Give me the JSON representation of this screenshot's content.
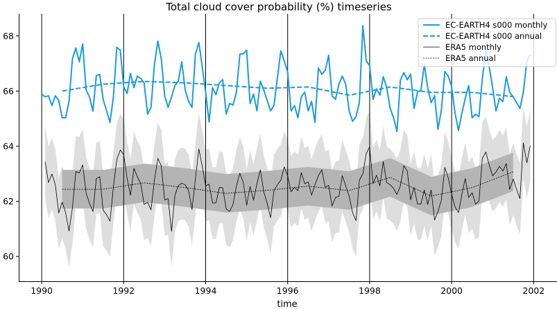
{
  "chart_data": {
    "type": "line",
    "title": "Total cloud cover probability (%) timeseries",
    "xlabel": "time",
    "ylabel": "",
    "xlim": [
      1989.44,
      2002.57
    ],
    "ylim": [
      59.1,
      68.8
    ],
    "xticks": [
      "1990",
      "1992",
      "1994",
      "1996",
      "1998",
      "2000",
      "2002"
    ],
    "yticks": [
      "60",
      "62",
      "64",
      "66",
      "68"
    ],
    "vertical_lines_at": [
      1990,
      1992,
      1994,
      1996,
      1998,
      2000,
      2002
    ],
    "grid": false,
    "legend_position": "top-right",
    "colors": {
      "ec_earth": "#1b9be0",
      "era5": "#000000",
      "era5_monthly_band": "#dedede",
      "era5_annual_band": "#b4b4b4"
    },
    "series": [
      {
        "name": "EC-EARTH4 s000 monthly",
        "style": "solid",
        "start": "1990-01",
        "step": "month",
        "values": [
          65.89,
          65.79,
          65.83,
          65.47,
          65.83,
          65.66,
          65.03,
          65.03,
          65.62,
          67.17,
          67.56,
          67.06,
          67.71,
          66.04,
          65.79,
          65.27,
          66.56,
          66.6,
          65.7,
          65.28,
          64.86,
          65.79,
          67.59,
          67.48,
          66.16,
          65.91,
          66.64,
          66.12,
          66.54,
          66.46,
          66.29,
          65.16,
          65.41,
          66.96,
          67.81,
          67.17,
          65.83,
          65.41,
          65.79,
          66.2,
          66.36,
          67.06,
          66.04,
          65.62,
          65.41,
          67.34,
          67.76,
          66.88,
          65.95,
          64.88,
          66.12,
          65.87,
          66.3,
          66.41,
          65.16,
          65.55,
          65.49,
          65.95,
          67.34,
          67.35,
          67.48,
          65.55,
          65.89,
          65.28,
          66.36,
          66.04,
          65.66,
          65.28,
          65.49,
          66.47,
          67.46,
          67.09,
          66.69,
          65.28,
          65.47,
          65.03,
          65.79,
          65.96,
          65.28,
          65.62,
          64.86,
          66.83,
          66.61,
          66.75,
          67.3,
          65.83,
          65.7,
          66.25,
          66.54,
          66.25,
          65.28,
          64.9,
          65.07,
          65.58,
          68.37,
          67.09,
          66.92,
          65.7,
          66.08,
          65.85,
          66.52,
          66.12,
          65.37,
          65.03,
          64.53,
          66.39,
          66.67,
          66.41,
          66.61,
          65.37,
          65.96,
          66.02,
          66.96,
          66.12,
          65.58,
          65.83,
          64.61,
          65.32,
          66.71,
          66.54,
          66.16,
          65.2,
          64.57,
          65.2,
          65.74,
          66.2,
          65.03,
          65.16,
          65.07,
          66.46,
          67.42,
          66.88,
          66.12,
          65.28,
          65.74,
          65.62,
          66.52,
          65.96,
          65.79,
          65.58,
          65.37,
          65.96,
          67.09,
          67.31
        ]
      },
      {
        "name": "EC-EARTH4 s000 annual",
        "style": "dashed",
        "years": [
          1990,
          1991,
          1992,
          1993,
          1994,
          1995,
          1996,
          1997,
          1998,
          1999,
          2000,
          2001
        ],
        "values": [
          66.0,
          66.25,
          66.35,
          66.3,
          66.2,
          66.1,
          66.15,
          65.85,
          66.15,
          65.95,
          65.95,
          65.8
        ]
      },
      {
        "name": "ERA5 monthly",
        "style": "solid-thin",
        "start": "1990-02",
        "step": "month",
        "band_halfwidth": 1.3,
        "values": [
          63.44,
          62.68,
          62.99,
          62.6,
          61.58,
          61.97,
          61.59,
          60.92,
          61.76,
          63.08,
          63.03,
          63.32,
          62.31,
          61.93,
          61.63,
          62.83,
          62.89,
          61.68,
          61.51,
          61.28,
          62.52,
          63.52,
          63.86,
          63.69,
          62.85,
          62.22,
          63.2,
          62.89,
          62.64,
          61.89,
          61.97,
          61.69,
          62.77,
          63.56,
          63.29,
          62.05,
          62.1,
          60.91,
          62.22,
          62.57,
          62.66,
          62.6,
          62.39,
          61.7,
          62.81,
          63.9,
          63.27,
          62.56,
          62.62,
          61.94,
          61.94,
          62.5,
          62.49,
          61.72,
          61.63,
          61.89,
          62.56,
          63.02,
          62.68,
          61.86,
          62.54,
          62.04,
          62.64,
          63.14,
          62.35,
          61.93,
          61.41,
          62.39,
          62.6,
          62.77,
          63.25,
          62.93,
          62.35,
          62.51,
          62.39,
          63.04,
          62.64,
          62.7,
          62.22,
          62.6,
          62.93,
          63.14,
          62.51,
          62.58,
          61.83,
          62.14,
          62.18,
          62.93,
          62.56,
          62.18,
          61.59,
          61.3,
          62.77,
          63.0,
          63.73,
          63.98,
          62.64,
          62.95,
          62.56,
          63.44,
          62.68,
          62.6,
          62.47,
          62.25,
          62.56,
          63.29,
          63.1,
          62.05,
          62.51,
          61.9,
          61.9,
          62.41,
          61.89,
          62.41,
          61.32,
          61.63,
          62.05,
          63.23,
          62.85,
          62.26,
          61.8,
          61.59,
          62.26,
          62.83,
          62.14,
          62.31,
          61.9,
          62.01,
          63.56,
          63.79,
          63.31,
          62.92,
          63.06,
          63.27,
          63.1,
          63.37,
          62.43,
          62.81,
          62.43,
          62.1,
          64.12,
          63.4,
          64.02
        ]
      },
      {
        "name": "ERA5 annual",
        "style": "dotted",
        "years": [
          1990,
          1991,
          1992,
          1993,
          1994,
          1995,
          1996,
          1997,
          1998,
          1999,
          2000,
          2001
        ],
        "band_halfwidth": 0.7,
        "values": [
          62.44,
          62.44,
          62.67,
          62.5,
          62.29,
          62.4,
          62.55,
          62.39,
          62.87,
          62.19,
          62.5,
          63.07
        ]
      }
    ]
  }
}
